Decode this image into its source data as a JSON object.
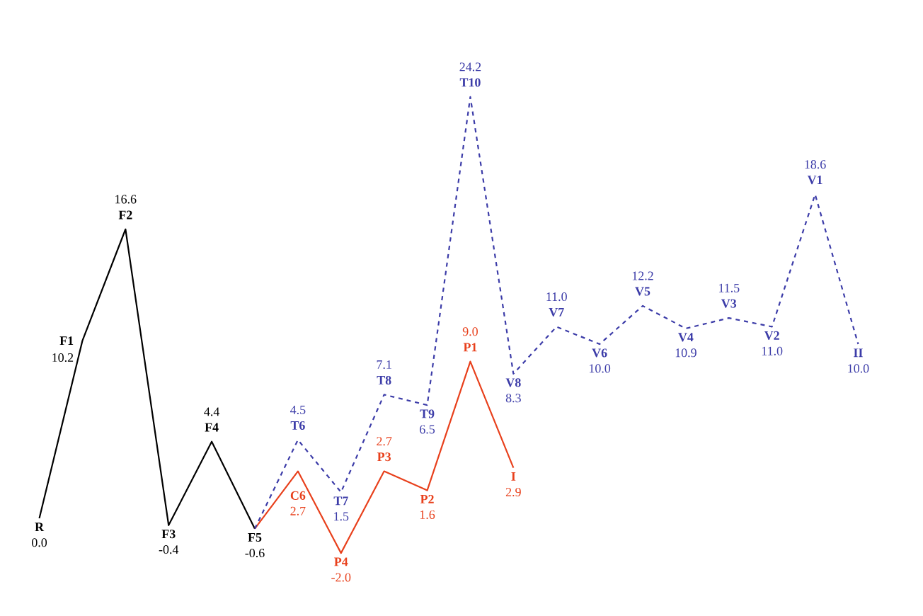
{
  "chart_data": {
    "type": "line",
    "tick_labels": false,
    "categories": [
      null,
      null,
      null,
      null,
      null,
      null,
      null,
      null,
      null,
      null,
      null,
      null,
      null,
      null,
      null,
      null,
      null,
      null,
      null,
      null
    ],
    "series": [
      {
        "color": "#000000",
        "line_style": "solid",
        "values": [
          0.0,
          10.2,
          16.6,
          -0.4,
          4.4,
          -0.6,
          null,
          null,
          null,
          null,
          null,
          null,
          null,
          null,
          null,
          null,
          null,
          null,
          null,
          null
        ],
        "value_labels": [
          "0.0",
          "10.2",
          "16.6",
          "-0.4",
          "4.4",
          "-0.6",
          null,
          null,
          null,
          null,
          null,
          null,
          null,
          null,
          null,
          null,
          null,
          null,
          null,
          null
        ]
      },
      {
        "color": "#e8401c",
        "line_style": "solid",
        "values": [
          null,
          null,
          null,
          null,
          null,
          -0.6,
          2.7,
          -2.0,
          2.7,
          1.6,
          9.0,
          2.9,
          null,
          null,
          null,
          null,
          null,
          null,
          null,
          null
        ],
        "value_labels": [
          null,
          null,
          null,
          null,
          null,
          null,
          "2.7",
          "-2.0",
          "2.7",
          "1.6",
          "9.0",
          "2.9",
          null,
          null,
          null,
          null,
          null,
          null,
          null,
          null
        ]
      },
      {
        "color": "#3c3ca8",
        "line_style": "dashed",
        "values": [
          null,
          null,
          null,
          null,
          null,
          -0.6,
          4.5,
          1.5,
          7.1,
          6.5,
          24.2,
          8.3,
          11.0,
          10.0,
          12.2,
          10.9,
          11.5,
          11.0,
          18.6,
          10.0
        ],
        "value_labels": [
          null,
          null,
          null,
          null,
          null,
          null,
          "4.5",
          "1.5",
          "7.1",
          "6.5",
          "24.2",
          "8.3",
          "11.0",
          "10.0",
          "12.2",
          "10.9",
          "11.5",
          "11.0",
          "18.6",
          "10.0"
        ]
      }
    ],
    "annotations": [
      "R",
      "F1",
      "F2",
      "F3",
      "F4",
      "F5",
      "C6",
      "P4",
      "P3",
      "P2",
      "P1",
      "I",
      "T6",
      "T7",
      "T8",
      "T9",
      "T10",
      "V8",
      "V7",
      "V6",
      "V5",
      "V4",
      "V3",
      "V2",
      "V1",
      "II"
    ]
  }
}
